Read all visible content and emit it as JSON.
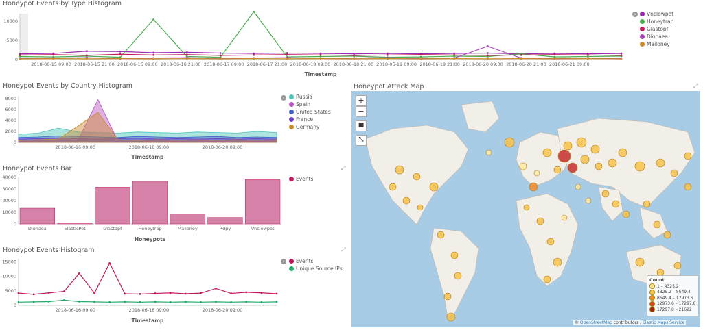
{
  "panel1": {
    "title": "Honeypot Events by Type Histogram",
    "legend": [
      {
        "label": "Vnclowpot",
        "color": "#9c27b0"
      },
      {
        "label": "Honeytrap",
        "color": "#4caf50"
      },
      {
        "label": "Glastopf",
        "color": "#c2185b"
      },
      {
        "label": "Dionaea",
        "color": "#ab47bc"
      },
      {
        "label": "Mailoney",
        "color": "#c98a2b"
      }
    ],
    "yticks": [
      "10000",
      "5000",
      "0"
    ],
    "xticks": [
      "2018-06-15 09:00",
      "2018-06-15 21:00",
      "2018-06-16 09:00",
      "2018-06-16 21:00",
      "2018-06-17 09:00",
      "2018-06-17 21:00",
      "2018-06-18 09:00",
      "2018-06-18 21:00",
      "2018-06-19 09:00",
      "2018-06-19 21:00",
      "2018-06-20 09:00",
      "2018-06-20 21:00",
      "2018-06-21 09:00"
    ],
    "xlabel": "Timestamp"
  },
  "panel2": {
    "title": "Honeypot Events by Country Histogram",
    "legend": [
      {
        "label": "Russia",
        "color": "#4cc4b8"
      },
      {
        "label": "Spain",
        "color": "#b84fc0"
      },
      {
        "label": "United States",
        "color": "#3f5fcc"
      },
      {
        "label": "France",
        "color": "#6a3fc4"
      },
      {
        "label": "Germany",
        "color": "#c98a2b"
      }
    ],
    "yticks": [
      "8000",
      "6000",
      "4000",
      "2000",
      "0"
    ],
    "xticks": [
      "2018-06-16 09:00",
      "2018-06-18 09:00",
      "2018-06-20 09:00"
    ],
    "xlabel": "Timestamp"
  },
  "panel3": {
    "title": "Honeypot Events Bar",
    "legend": [
      {
        "label": "Events",
        "color": "#c2185b"
      }
    ],
    "yticks": [
      "40000",
      "30000",
      "20000",
      "10000",
      "0"
    ],
    "xlabel": "Honeypots"
  },
  "panel4": {
    "title": "Honeypot Events Histogram",
    "legend": [
      {
        "label": "Events",
        "color": "#c2185b"
      },
      {
        "label": "Unique Source IPs",
        "color": "#26a96c"
      }
    ],
    "yticks": [
      "15000",
      "10000",
      "5000",
      "0"
    ],
    "xticks": [
      "2018-06-16 09:00",
      "2018-06-18 09:00",
      "2018-06-20 09:00"
    ],
    "xlabel": "Timestamp"
  },
  "map": {
    "title": "Honeypot Attack Map",
    "zoom_in": "+",
    "zoom_out": "−",
    "legend_title": "Count",
    "legend": [
      {
        "label": "1 – 4325.2",
        "color": "#ffe9a3"
      },
      {
        "label": "4325.2 – 8649.4",
        "color": "#f7c24a"
      },
      {
        "label": "8649.4 – 12973.6",
        "color": "#ee8a2c"
      },
      {
        "label": "12973.6 – 17297.8",
        "color": "#d63b2b"
      },
      {
        "label": "17297.8 – 21622",
        "color": "#a51818"
      }
    ],
    "attribution_sep": "©",
    "attribution_osm": "OpenStreetMap",
    "attribution_mid": "contributors ,",
    "attribution_ems": "Elastic Maps Service"
  },
  "chart_data": [
    {
      "type": "line",
      "title": "Honeypot Events by Type Histogram",
      "xlabel": "Timestamp",
      "ylim": [
        0,
        12000
      ],
      "x": [
        "2018-06-14 21:00",
        "2018-06-15 06:00",
        "2018-06-15 15:00",
        "2018-06-16 00:00",
        "2018-06-16 09:00",
        "2018-06-16 18:00",
        "2018-06-17 03:00",
        "2018-06-17 12:00",
        "2018-06-17 21:00",
        "2018-06-18 06:00",
        "2018-06-18 15:00",
        "2018-06-19 00:00",
        "2018-06-19 09:00",
        "2018-06-19 18:00",
        "2018-06-20 03:00",
        "2018-06-20 12:00",
        "2018-06-20 21:00",
        "2018-06-21 06:00",
        "2018-06-21 15:00"
      ],
      "series": [
        {
          "name": "Vnclowpot",
          "values": [
            1500,
            1600,
            2200,
            2100,
            1800,
            1900,
            1700,
            1600,
            1700,
            1600,
            1500,
            1600,
            1500,
            1600,
            1700,
            1500,
            1600,
            1500,
            1600
          ]
        },
        {
          "name": "Honeytrap",
          "values": [
            800,
            700,
            900,
            600,
            10500,
            800,
            600,
            12500,
            700,
            800,
            900,
            600,
            700,
            900,
            800,
            1500,
            700,
            800,
            900
          ]
        },
        {
          "name": "Glastopf",
          "values": [
            1200,
            1300,
            1100,
            1400,
            1200,
            1300,
            1100,
            1200,
            1300,
            1200,
            1100,
            1200,
            1300,
            1200,
            1100,
            1200,
            1300,
            1200,
            1100
          ]
        },
        {
          "name": "Dionaea",
          "values": [
            300,
            400,
            500,
            300,
            400,
            500,
            300,
            400,
            500,
            300,
            400,
            500,
            300,
            400,
            3500,
            400,
            300,
            400,
            300
          ]
        },
        {
          "name": "Mailoney",
          "values": [
            200,
            250,
            200,
            250,
            200,
            250,
            200,
            250,
            200,
            250,
            200,
            250,
            200,
            250,
            200,
            250,
            200,
            250,
            200
          ]
        }
      ]
    },
    {
      "type": "area",
      "title": "Honeypot Events by Country Histogram",
      "xlabel": "Timestamp",
      "ylim": [
        0,
        8500
      ],
      "x": [
        "2018-06-15 00:00",
        "2018-06-15 12:00",
        "2018-06-16 00:00",
        "2018-06-16 12:00",
        "2018-06-17 00:00",
        "2018-06-17 12:00",
        "2018-06-18 00:00",
        "2018-06-18 12:00",
        "2018-06-19 00:00",
        "2018-06-19 12:00",
        "2018-06-20 00:00",
        "2018-06-20 12:00",
        "2018-06-21 00:00",
        "2018-06-21 12:00"
      ],
      "series": [
        {
          "name": "Russia",
          "values": [
            1500,
            1700,
            2600,
            1900,
            1800,
            1700,
            1900,
            1800,
            1700,
            1900,
            1800,
            1700,
            2000,
            1800
          ]
        },
        {
          "name": "Spain",
          "values": [
            200,
            300,
            500,
            400,
            7800,
            300,
            200,
            300,
            200,
            300,
            200,
            300,
            200,
            300
          ]
        },
        {
          "name": "United States",
          "values": [
            900,
            1000,
            1200,
            1100,
            1000,
            900,
            1100,
            1000,
            900,
            1000,
            1100,
            900,
            1000,
            900
          ]
        },
        {
          "name": "France",
          "values": [
            600,
            700,
            800,
            700,
            600,
            700,
            800,
            600,
            700,
            600,
            700,
            600,
            700,
            600
          ]
        },
        {
          "name": "Germany",
          "values": [
            400,
            500,
            600,
            3000,
            5500,
            500,
            400,
            500,
            400,
            500,
            400,
            500,
            400,
            500
          ]
        }
      ]
    },
    {
      "type": "bar",
      "title": "Honeypot Events Bar",
      "xlabel": "Honeypots",
      "ylim": [
        0,
        40000
      ],
      "categories": [
        "Dionaea",
        "ElasticPot",
        "Glastopf",
        "Honeytrap",
        "Mailoney",
        "Rdpy",
        "Vnclowpot"
      ],
      "series": [
        {
          "name": "Events",
          "values": [
            13500,
            800,
            31500,
            36500,
            8500,
            5500,
            38000
          ]
        }
      ]
    },
    {
      "type": "line",
      "title": "Honeypot Events Histogram",
      "xlabel": "Timestamp",
      "ylim": [
        0,
        16000
      ],
      "x": [
        "2018-06-15 00:00",
        "2018-06-15 09:00",
        "2018-06-15 18:00",
        "2018-06-16 03:00",
        "2018-06-16 12:00",
        "2018-06-16 21:00",
        "2018-06-17 06:00",
        "2018-06-17 15:00",
        "2018-06-18 00:00",
        "2018-06-18 09:00",
        "2018-06-18 18:00",
        "2018-06-19 03:00",
        "2018-06-19 12:00",
        "2018-06-19 21:00",
        "2018-06-20 06:00",
        "2018-06-20 15:00",
        "2018-06-21 00:00",
        "2018-06-21 09:00"
      ],
      "series": [
        {
          "name": "Events",
          "values": [
            4200,
            3800,
            4300,
            4800,
            11000,
            4200,
            14500,
            4000,
            3900,
            4100,
            4300,
            4000,
            4200,
            5800,
            4100,
            4500,
            4300,
            4000
          ]
        },
        {
          "name": "Unique Source IPs",
          "values": [
            1100,
            1200,
            1300,
            1800,
            1300,
            1200,
            1100,
            1200,
            1100,
            1200,
            1100,
            1200,
            1100,
            1200,
            1100,
            1200,
            1100,
            1200
          ]
        }
      ]
    }
  ]
}
